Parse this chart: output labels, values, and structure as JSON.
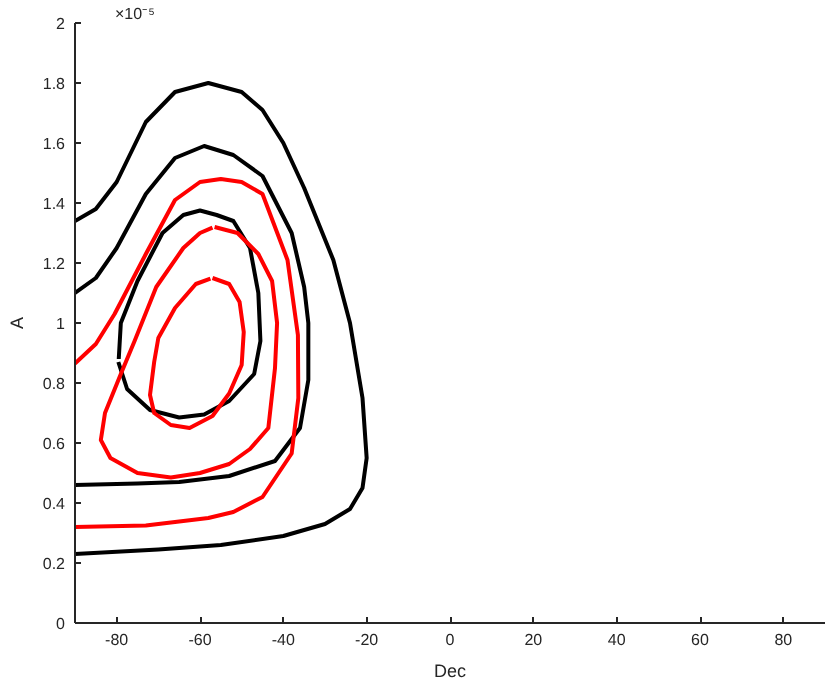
{
  "chart_data": {
    "type": "line",
    "xlabel": "Dec",
    "ylabel": "A",
    "annotations": [
      "×10⁻⁵"
    ],
    "xlim": [
      -90,
      90
    ],
    "ylim": [
      0,
      2
    ],
    "xticks": [
      -80,
      -60,
      -40,
      -20,
      0,
      20,
      40,
      60,
      80
    ],
    "yticks": [
      0,
      0.2,
      0.4,
      0.6,
      0.8,
      1,
      1.2,
      1.4,
      1.6,
      1.8,
      2
    ],
    "grid": false,
    "marker": "none",
    "line_style": "solid",
    "series": [
      {
        "color": "#000000",
        "x": [
          -90,
          -85,
          -80,
          -73,
          -66,
          -58,
          -50,
          -45,
          -40,
          -35,
          -28,
          -24,
          -21,
          -20,
          -21,
          -24,
          -30,
          -40,
          -55,
          -70,
          -90
        ],
        "values": [
          1.34,
          1.38,
          1.47,
          1.67,
          1.77,
          1.8,
          1.77,
          1.71,
          1.6,
          1.45,
          1.21,
          1.0,
          0.75,
          0.55,
          0.45,
          0.38,
          0.33,
          0.29,
          0.26,
          0.245,
          0.23
        ]
      },
      {
        "color": "#000000",
        "x": [
          -90,
          -85,
          -80,
          -73,
          -66,
          -59,
          -52,
          -45,
          -38,
          -35,
          -34,
          -34,
          -36,
          -42,
          -53,
          -65,
          -75,
          -90
        ],
        "values": [
          1.1,
          1.15,
          1.25,
          1.43,
          1.55,
          1.59,
          1.56,
          1.49,
          1.3,
          1.12,
          1.0,
          0.81,
          0.65,
          0.54,
          0.49,
          0.47,
          0.465,
          0.46
        ]
      },
      {
        "color": "#000000",
        "x": [
          -79.5,
          -79,
          -75,
          -69,
          -64,
          -60,
          -56,
          -52,
          -48,
          -46,
          -45.5,
          -47,
          -53,
          -59,
          -65,
          -72,
          -77.5,
          -79.6
        ],
        "values": [
          0.88,
          1.0,
          1.14,
          1.3,
          1.36,
          1.375,
          1.36,
          1.34,
          1.25,
          1.1,
          0.94,
          0.83,
          0.74,
          0.695,
          0.685,
          0.71,
          0.78,
          0.87
        ]
      },
      {
        "color": "#ff0000",
        "x": [
          -90,
          -85,
          -80.5,
          -73,
          -66,
          -60,
          -55,
          -50,
          -45,
          -39,
          -36.5,
          -36.4,
          -38,
          -45,
          -52,
          -58,
          -73,
          -90
        ],
        "values": [
          0.865,
          0.93,
          1.03,
          1.23,
          1.41,
          1.47,
          1.48,
          1.47,
          1.43,
          1.21,
          0.96,
          0.75,
          0.565,
          0.42,
          0.37,
          0.35,
          0.325,
          0.32
        ]
      },
      {
        "color": "#ff0000",
        "x": [
          -56.5,
          -51,
          -46,
          -42.7,
          -41.5,
          -42,
          -43.6,
          -48,
          -53,
          -60,
          -67,
          -75,
          -81.5,
          -83.8,
          -82.8,
          -79,
          -75.7,
          -70.5,
          -64,
          -60,
          -57
        ],
        "values": [
          1.32,
          1.3,
          1.23,
          1.14,
          1.0,
          0.85,
          0.65,
          0.58,
          0.53,
          0.5,
          0.485,
          0.5,
          0.55,
          0.61,
          0.7,
          0.83,
          0.94,
          1.12,
          1.25,
          1.3,
          1.318
        ]
      },
      {
        "color": "#ff0000",
        "x": [
          -57,
          -53,
          -50.5,
          -49.5,
          -50,
          -53,
          -57,
          -62.5,
          -67,
          -71,
          -72,
          -71,
          -70,
          -66,
          -61,
          -57.5
        ],
        "values": [
          1.15,
          1.13,
          1.07,
          0.97,
          0.86,
          0.765,
          0.69,
          0.65,
          0.66,
          0.7,
          0.76,
          0.87,
          0.95,
          1.05,
          1.13,
          1.148
        ]
      }
    ]
  }
}
